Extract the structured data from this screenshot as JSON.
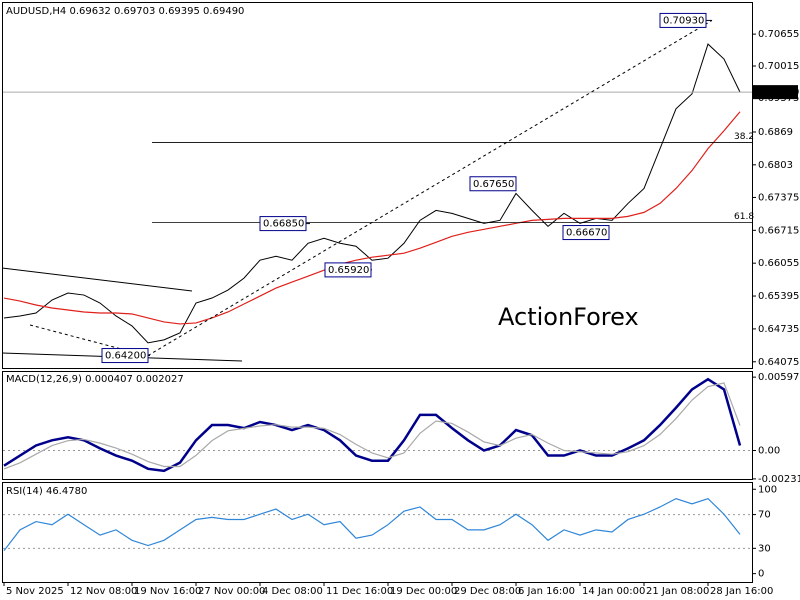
{
  "chart_data": [
    {
      "type": "line",
      "title": "AUDUSD,H4  0.69632 0.69703 0.69395 0.69490",
      "watermark": "ActionForex",
      "ylim": [
        0.6395,
        0.713
      ],
      "yticks": [
        0.70655,
        0.70015,
        0.69375,
        0.6869,
        0.6803,
        0.67375,
        0.66715,
        0.66055,
        0.65395,
        0.64735,
        0.64075
      ],
      "last_price": {
        "value": 0.6949,
        "label": "0.69490"
      },
      "levels": [
        {
          "label": "38.2",
          "value": 0.6848
        },
        {
          "label": "61.8",
          "value": 0.6687
        }
      ],
      "annotations": [
        {
          "value": 0.7093,
          "label": "0.70930"
        },
        {
          "value": 0.6765,
          "label": "0.67650"
        },
        {
          "value": 0.6685,
          "label": "0.66850"
        },
        {
          "value": 0.6592,
          "label": "0.65920"
        },
        {
          "value": 0.6667,
          "label": "0.66670"
        },
        {
          "value": 0.642,
          "label": "0.64200"
        }
      ],
      "series": [
        {
          "name": "AUDUSD",
          "color": "#000000",
          "values": [
            0.64955,
            0.64995,
            0.65055,
            0.65315,
            0.65455,
            0.65415,
            0.65255,
            0.64995,
            0.64795,
            0.64455,
            0.64515,
            0.64655,
            0.65255,
            0.65355,
            0.65515,
            0.65755,
            0.66115,
            0.66195,
            0.66115,
            0.66455,
            0.66555,
            0.66455,
            0.66395,
            0.66115,
            0.66155,
            0.66455,
            0.66915,
            0.67115,
            0.67055,
            0.66955,
            0.66855,
            0.66915,
            0.67455,
            0.67115,
            0.66795,
            0.67055,
            0.66855,
            0.66955,
            0.66915,
            0.67255,
            0.67555,
            0.68355,
            0.69155,
            0.69455,
            0.70455,
            0.70155,
            0.6949
          ]
        },
        {
          "name": "MA",
          "color": "#e0201b",
          "values": [
            0.65355,
            0.65295,
            0.65215,
            0.65155,
            0.65115,
            0.65075,
            0.65055,
            0.65055,
            0.65035,
            0.64955,
            0.64875,
            0.64835,
            0.64855,
            0.64955,
            0.65075,
            0.65235,
            0.65395,
            0.65555,
            0.65675,
            0.65795,
            0.65915,
            0.66035,
            0.66115,
            0.66175,
            0.66215,
            0.66255,
            0.66355,
            0.66475,
            0.66595,
            0.66675,
            0.66735,
            0.66795,
            0.66855,
            0.66915,
            0.66935,
            0.66955,
            0.66955,
            0.66955,
            0.66955,
            0.66995,
            0.67075,
            0.67255,
            0.67555,
            0.67915,
            0.68355,
            0.68715,
            0.69095
          ]
        }
      ]
    },
    {
      "type": "line",
      "title": "MACD(12,26,9) 0.000407 0.002027",
      "ylim": [
        -0.00232,
        0.00647
      ],
      "yticks": [
        0.005971,
        {
          "value": 0,
          "label": "0.00"
        },
        -0.00231
      ],
      "series": [
        {
          "name": "MACD",
          "color": "#00008b",
          "values": [
            -0.00124,
            -0.00041,
            0.00041,
            0.00083,
            0.00108,
            0.00083,
            0.00017,
            -0.00041,
            -0.00083,
            -0.00149,
            -0.00166,
            -0.00099,
            0.00083,
            0.00207,
            0.00207,
            0.00182,
            0.00232,
            0.00207,
            0.00166,
            0.00207,
            0.00166,
            0.00083,
            -0.00041,
            -0.00083,
            -0.00083,
            0.00083,
            0.0029,
            0.0029,
            0.00182,
            0.00083,
            0,
            0.00041,
            0.00166,
            0.00124,
            -0.00041,
            -0.00041,
            0,
            -0.00041,
            -0.00041,
            0.00017,
            0.00083,
            0.00207,
            0.00348,
            0.00497,
            0.0058,
            0.00497,
            0.000407
          ]
        },
        {
          "name": "Signal",
          "color": "#a9a9a9",
          "values": [
            -0.0015,
            -0.001,
            -0.0003,
            0.0004,
            0.0008,
            0.0009,
            0.0006,
            0.0002,
            -0.0003,
            -0.0009,
            -0.0013,
            -0.0013,
            -0.0004,
            0.0008,
            0.0016,
            0.0018,
            0.002,
            0.0021,
            0.0019,
            0.0019,
            0.0018,
            0.0013,
            0.0005,
            -0.0002,
            -0.0006,
            -0.0002,
            0.0014,
            0.0024,
            0.0022,
            0.0015,
            0.0007,
            0.0004,
            0.001,
            0.0013,
            0.0006,
            0,
            -0.0001,
            -0.0002,
            -0.0003,
            -0.0001,
            0.0004,
            0.0013,
            0.0026,
            0.0041,
            0.0052,
            0.0055,
            0.002027
          ]
        }
      ]
    },
    {
      "type": "line",
      "title": "RSI(14) 46.4780",
      "ylim": [
        -9.9,
        108.6
      ],
      "yticks": [
        100,
        70,
        30,
        0
      ],
      "categories": [
        "5 Nov 2025",
        null,
        null,
        null,
        "12 Nov 08:00",
        null,
        null,
        null,
        "19 Nov 16:00",
        null,
        null,
        null,
        "27 Nov 00:00",
        null,
        null,
        null,
        "4 Dec 08:00",
        null,
        null,
        null,
        "11 Dec 16:00",
        null,
        null,
        null,
        "19 Dec 00:00",
        null,
        null,
        null,
        "29 Dec 08:00",
        null,
        null,
        null,
        "6 Jan 16:00",
        null,
        null,
        null,
        "14 Jan 00:00",
        null,
        null,
        null,
        "21 Jan 08:00",
        null,
        null,
        null,
        "28 Jan 16:00",
        null,
        null
      ],
      "series": [
        {
          "name": "RSI",
          "color": "#2f86d8",
          "values": [
            27.2,
            51.9,
            61.7,
            58.0,
            70.4,
            58.0,
            45.7,
            51.9,
            39.5,
            33.3,
            39.5,
            51.9,
            64.2,
            66.7,
            64.2,
            64.2,
            70.4,
            76.5,
            64.2,
            70.4,
            58.0,
            61.7,
            42.0,
            45.7,
            58.0,
            74.1,
            79.0,
            64.2,
            64.2,
            51.9,
            51.9,
            58.0,
            70.4,
            58.0,
            39.5,
            51.9,
            45.7,
            51.9,
            49.4,
            64.2,
            70.4,
            79.0,
            88.9,
            82.7,
            88.9,
            70.4,
            46.478
          ]
        }
      ]
    }
  ]
}
